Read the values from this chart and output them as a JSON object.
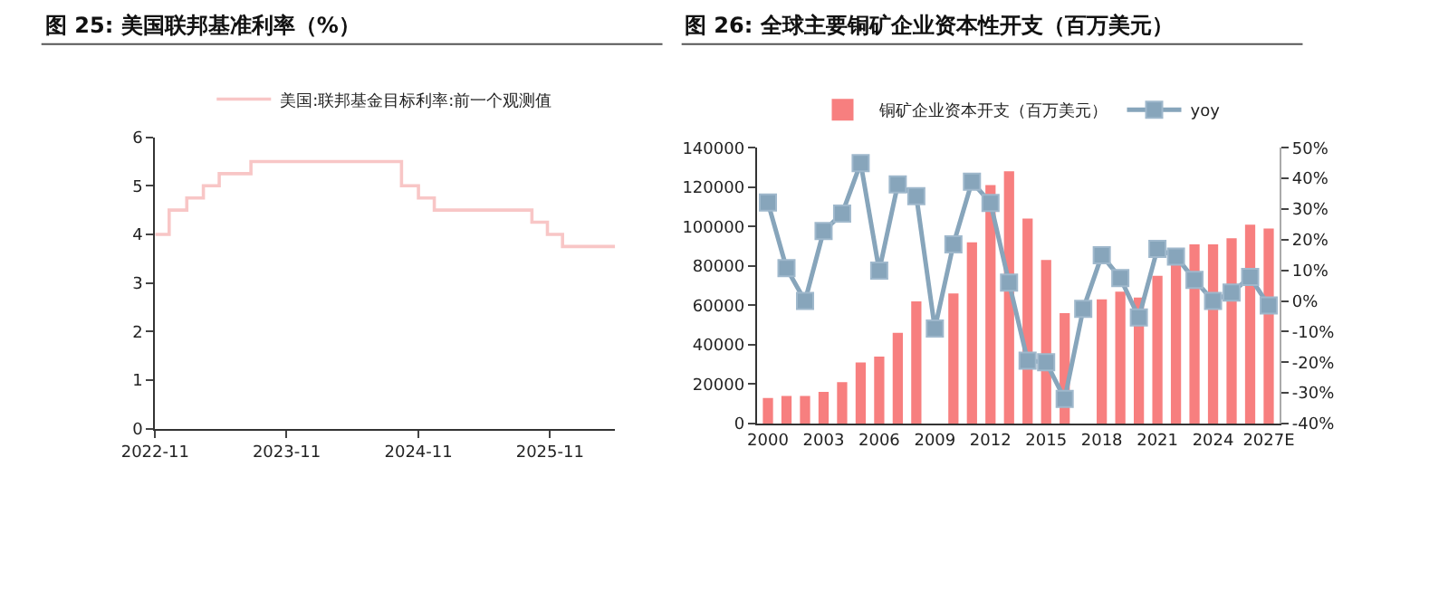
{
  "chart_data": [
    {
      "type": "step",
      "title": "图 25: 美国联邦基准利率（%）",
      "x": [
        "2022-11-01",
        "2022-12-10",
        "2023-01-28",
        "2023-03-15",
        "2023-04-28",
        "2023-07-25",
        "2024-09-15",
        "2024-11-01",
        "2024-12-15",
        "2025-09-12",
        "2025-10-25",
        "2025-12-06",
        "2026-05-01"
      ],
      "series": [
        {
          "name": "美国:联邦基金目标利率:前一个观测值",
          "color": "#f8c6c6",
          "values": [
            4.0,
            4.5,
            4.75,
            5.0,
            5.25,
            5.5,
            5.0,
            4.75,
            4.5,
            4.25,
            4.0,
            3.75,
            3.75
          ]
        }
      ],
      "xlim": [
        "2022-11-01",
        "2026-05-01"
      ],
      "xticks": [
        {
          "value": "2022-11-01",
          "label": "2022-11"
        },
        {
          "value": "2023-11-01",
          "label": "2023-11"
        },
        {
          "value": "2024-11-01",
          "label": "2024-11"
        },
        {
          "value": "2025-11-01",
          "label": "2025-11"
        }
      ],
      "ylim": [
        0,
        6
      ],
      "yticks": [
        0,
        1,
        2,
        3,
        4,
        5,
        6
      ],
      "legend": "top",
      "line_style": "solid",
      "marker": "none"
    },
    {
      "type": "bar",
      "title": "图 26: 全球主要铜矿企业资本性开支（百万美元）",
      "categories": [
        "2000",
        null,
        null,
        "2003",
        null,
        null,
        "2006",
        null,
        null,
        "2009",
        null,
        null,
        "2012",
        null,
        null,
        "2015",
        null,
        null,
        "2018",
        null,
        null,
        "2021",
        null,
        null,
        "2024",
        null,
        null,
        "2027E"
      ],
      "series": [
        {
          "name": "铜矿企业资本开支（百万美元）",
          "type": "bar",
          "color": "#f77f7f",
          "values": [
            13000,
            14000,
            14000,
            16000,
            21000,
            31000,
            34000,
            46000,
            62000,
            null,
            66000,
            92000,
            121000,
            128000,
            104000,
            83000,
            56000,
            null,
            63000,
            67000,
            64000,
            75000,
            82000,
            91000,
            91000,
            94000,
            101000,
            99000
          ]
        },
        {
          "name": "yoy",
          "type": "line",
          "axis": "y2",
          "color": "#87a5bb",
          "marker": "square",
          "values": [
            32.1,
            10.7,
            0,
            22.8,
            28.5,
            45,
            9.9,
            38,
            34.2,
            -9,
            18.5,
            38.9,
            32,
            6,
            -19.5,
            -20,
            -32,
            -2.6,
            14.9,
            7.5,
            -5.4,
            17,
            14.5,
            6.9,
            0,
            2.7,
            7.8,
            -1.5
          ]
        }
      ],
      "ylim": [
        0,
        140000
      ],
      "yticks": [
        0,
        20000,
        40000,
        60000,
        80000,
        100000,
        120000,
        140000
      ],
      "y2lim": [
        -40,
        50
      ],
      "y2ticks": [
        {
          "value": -40,
          "label": "-40%"
        },
        {
          "value": -30,
          "label": "-30%"
        },
        {
          "value": -20,
          "label": "-20%"
        },
        {
          "value": -10,
          "label": "-10%"
        },
        {
          "value": 0,
          "label": "0%"
        },
        {
          "value": 10,
          "label": "10%"
        },
        {
          "value": 20,
          "label": "20%"
        },
        {
          "value": 30,
          "label": "30%"
        },
        {
          "value": 40,
          "label": "40%"
        },
        {
          "value": 50,
          "label": "50%"
        }
      ],
      "legend": "top"
    }
  ]
}
